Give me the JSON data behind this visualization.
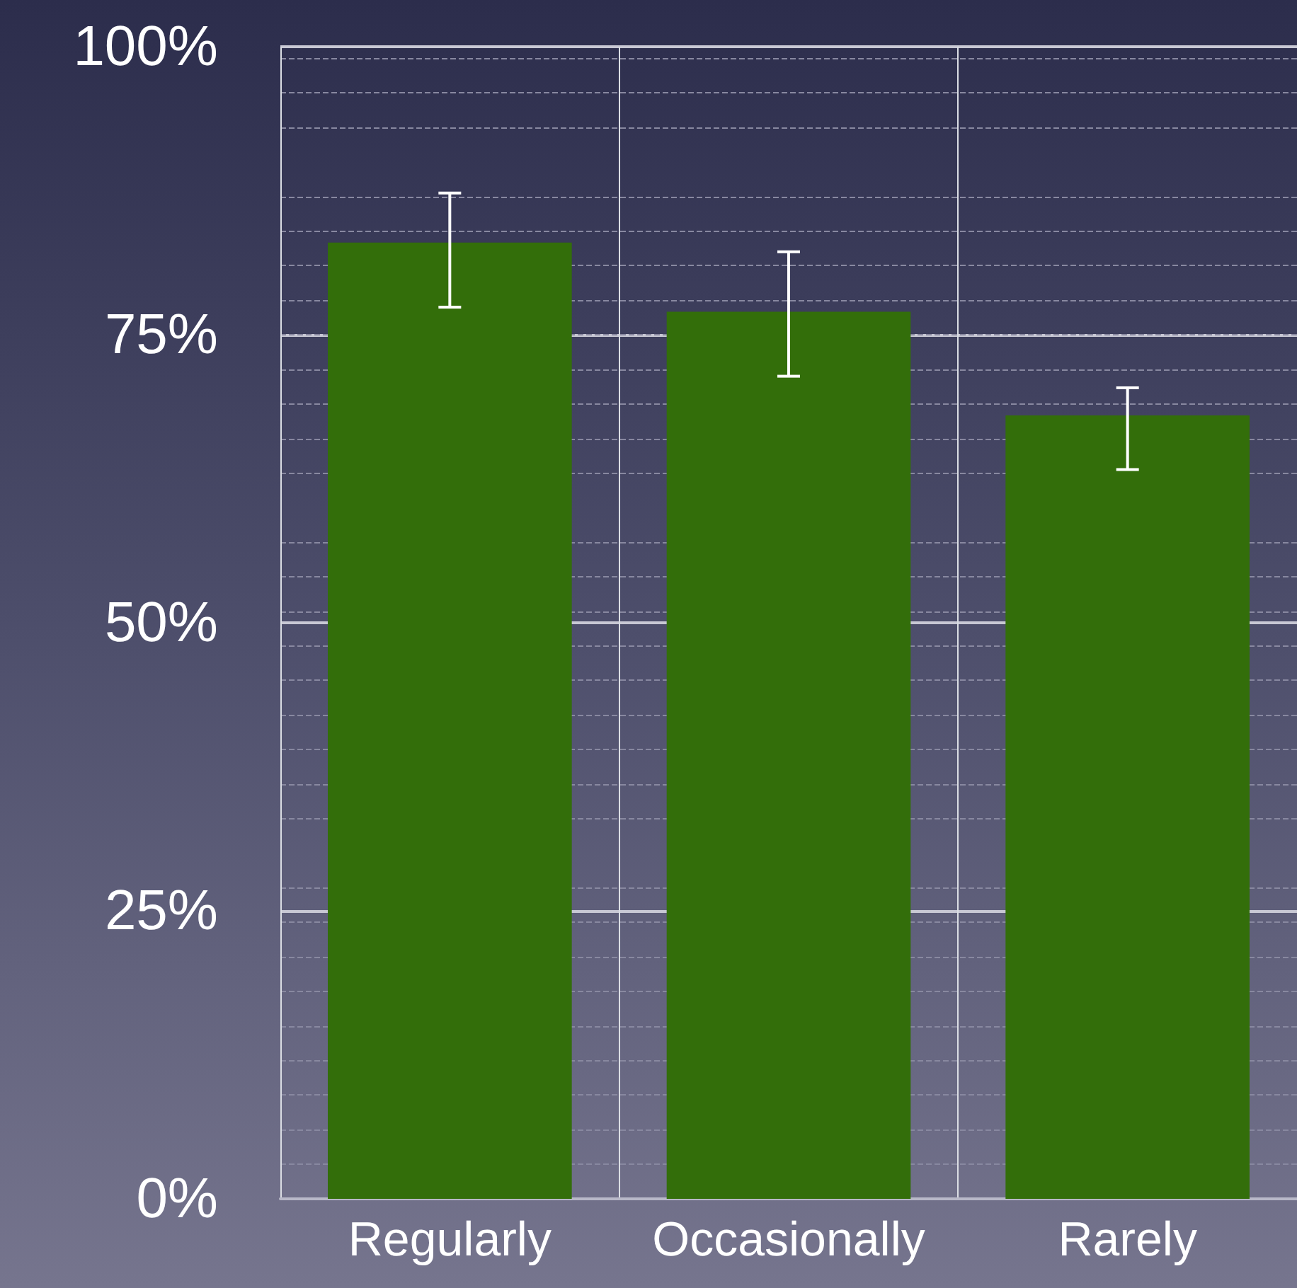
{
  "chart_data": {
    "type": "bar",
    "categories": [
      "Regularly",
      "Occasionally",
      "Rarely"
    ],
    "values": [
      83,
      77,
      68
    ],
    "color": "#336e0a",
    "errors": [
      [
        77.4,
        87.3
      ],
      [
        71.4,
        82.2
      ],
      [
        63.3,
        70.4
      ]
    ],
    "ylim": [
      0,
      100
    ],
    "yticks": [
      {
        "value": 0,
        "label": "0%"
      },
      {
        "value": 25,
        "label": "25%"
      },
      {
        "value": 50,
        "label": "50%"
      },
      {
        "value": 75,
        "label": "75%"
      },
      {
        "value": 100,
        "label": "100%"
      }
    ],
    "grid": true
  }
}
